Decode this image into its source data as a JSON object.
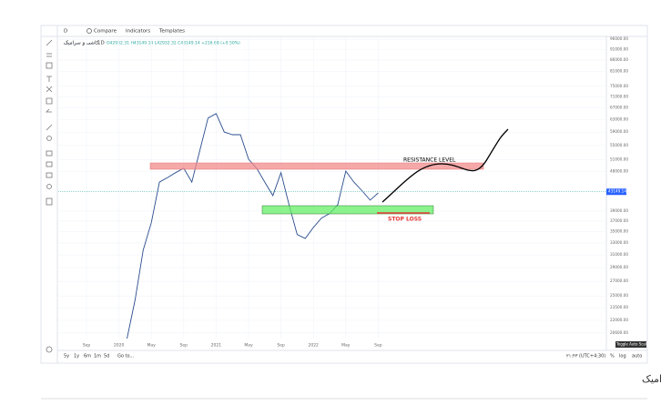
{
  "toolbar": {
    "interval": "D",
    "compare": "Compare",
    "indicators": "Indicators",
    "templates": "Templates"
  },
  "legend": {
    "symbol": "کاشی و سرامیک",
    "timeframe": "1D",
    "ohlc": "O42932.31 H43149.14 L42932.32 C43149.14 +216.68 (+0.50%)"
  },
  "bottom_bar": {
    "ranges": [
      "5y",
      "1y",
      "6m",
      "1m",
      "5d"
    ],
    "goto": "Go to...",
    "clock": "۲۱:۴۳ (UTC+4:30)",
    "percent": "%",
    "log": "log",
    "auto": "auto",
    "tooltip": "Toggle Auto Scale"
  },
  "annotations": {
    "resistance": "RESISTANCE LEVEL",
    "stop_loss": "STOP LOSS"
  },
  "caption": "تحلیل تکنیکالی صنعت کاشی و سرامیک",
  "chart_data": {
    "type": "line",
    "log_scale": true,
    "grid": true,
    "color": "#2a4d8f",
    "categories": [
      null,
      null,
      "Sep",
      null,
      null,
      null,
      "2020",
      null,
      null,
      null,
      "May",
      null,
      null,
      null,
      "Sep",
      null,
      null,
      null,
      "2021",
      null,
      null,
      null,
      "May",
      null,
      null,
      null,
      "Sep",
      null,
      null,
      null,
      "2022",
      null,
      null,
      null,
      "May",
      null,
      null,
      null,
      "Sep"
    ],
    "values": [
      null,
      null,
      null,
      null,
      null,
      null,
      null,
      20000,
      24500,
      31800,
      36700,
      45400,
      46500,
      47700,
      48800,
      45400,
      53700,
      63500,
      65000,
      59000,
      58200,
      58200,
      51200,
      48800,
      45400,
      42300,
      47700,
      40300,
      34500,
      33800,
      35800,
      37600,
      38500,
      40300,
      48100,
      45400,
      43400,
      41300,
      42900
    ],
    "ylim": [
      20000,
      97400
    ],
    "yticks": [
      {
        "value": 96000,
        "label": "96000.00"
      },
      {
        "value": 91000,
        "label": "91000.00"
      },
      {
        "value": 86000,
        "label": "86000.00"
      },
      {
        "value": 81000,
        "label": "81000.00"
      },
      {
        "value": 75000,
        "label": "75000.00"
      },
      {
        "value": 71000,
        "label": "71000.00"
      },
      {
        "value": 67000,
        "label": "67000.00"
      },
      {
        "value": 63000,
        "label": "63000.00"
      },
      {
        "value": 59000,
        "label": "59000.00"
      },
      {
        "value": 55000,
        "label": "55000.00"
      },
      {
        "value": 51000,
        "label": "51000.00"
      },
      {
        "value": 48000,
        "label": "48000.00"
      },
      {
        "value": 39000,
        "label": "39000.00"
      },
      {
        "value": 37000,
        "label": "37000.00"
      },
      {
        "value": 35000,
        "label": "35000.00"
      },
      {
        "value": 33000,
        "label": "33000.00"
      },
      {
        "value": 31000,
        "label": "31000.00"
      },
      {
        "value": 29000,
        "label": "29000.00"
      },
      {
        "value": 27000,
        "label": "27000.00"
      },
      {
        "value": 25000,
        "label": "25000.00"
      },
      {
        "value": 23500,
        "label": "23500.00"
      },
      {
        "value": 22000,
        "label": "22000.00"
      },
      {
        "value": 20600,
        "label": "20600.00"
      }
    ],
    "last_price": 43149.14
  }
}
